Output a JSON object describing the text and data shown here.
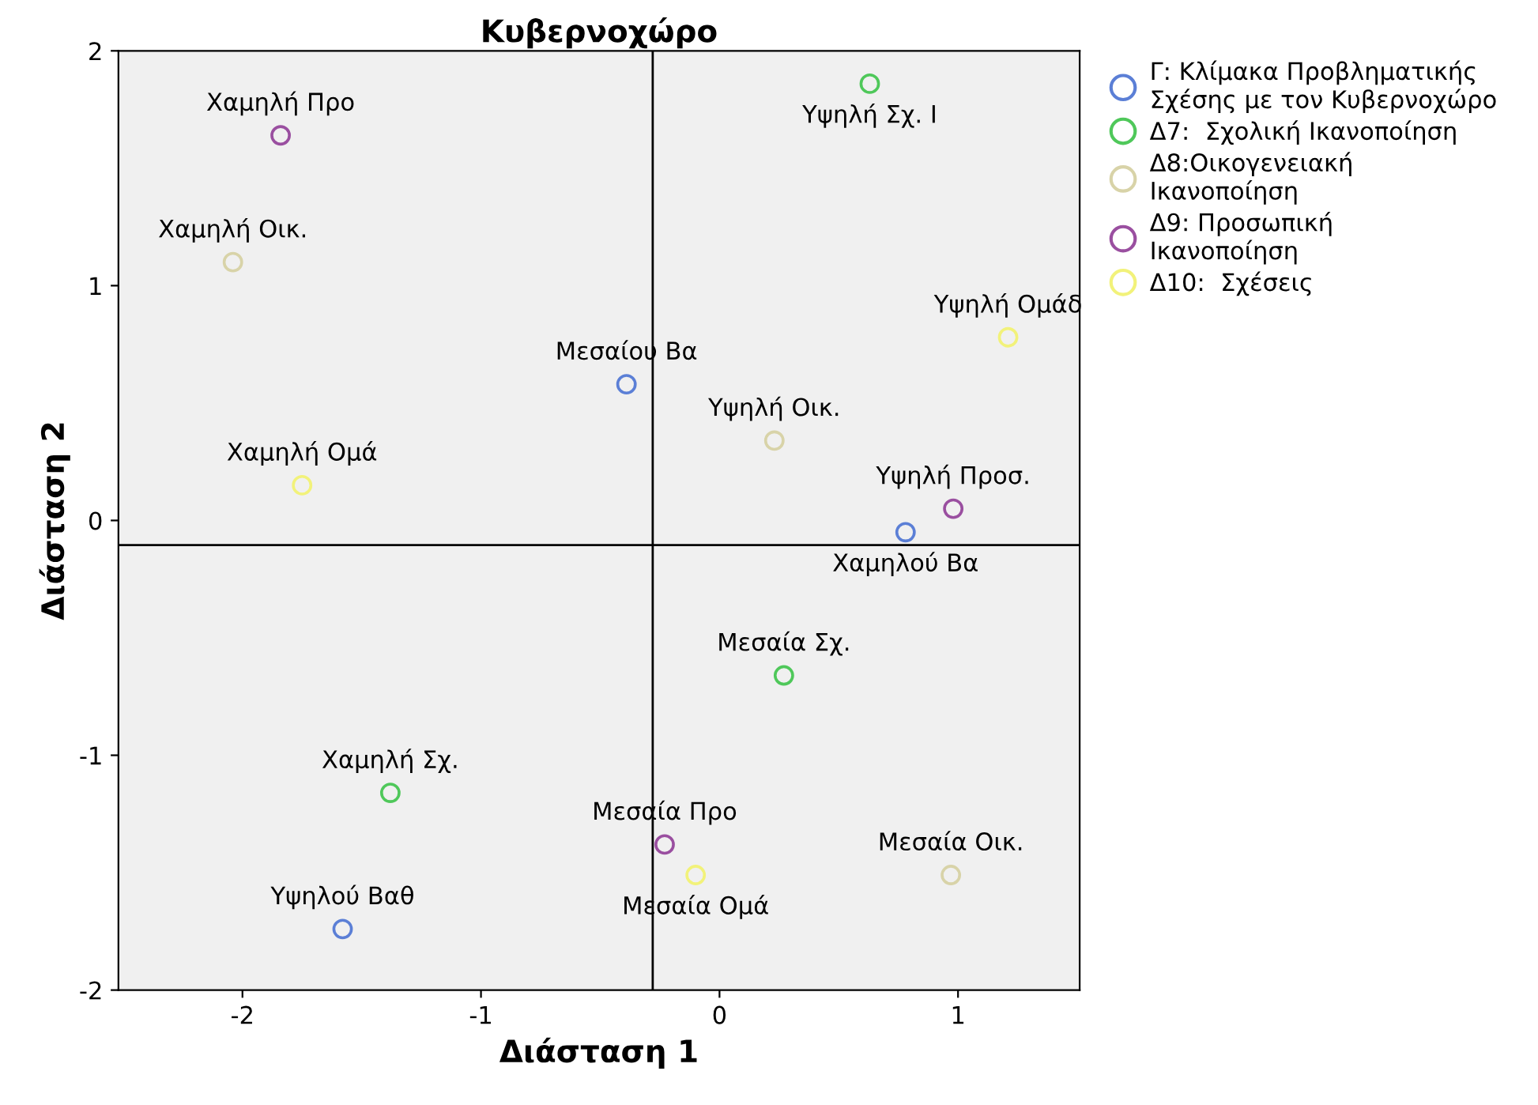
{
  "chart_data": {
    "type": "scatter",
    "title": "Κυβερνοχώρο",
    "xlabel": "Διάσταση 1",
    "ylabel": "Διάσταση 2",
    "xlim": [
      -2.52,
      1.51
    ],
    "ylim": [
      -2,
      2
    ],
    "xticks": [
      -2,
      -1,
      0,
      1
    ],
    "yticks": [
      -2,
      -1,
      0,
      1,
      2
    ],
    "grid": false,
    "legend": "top right",
    "marker": "circle",
    "series": [
      {
        "name": "Γ: Κλίμακα Προβληματικής\nΣχέσης με τον Κυβερνοχώρο",
        "color": "#5b7fd6",
        "x": [
          -0.39,
          0.78,
          -1.58
        ],
        "values": [
          0.58,
          -0.05,
          -1.74
        ]
      },
      {
        "name": "Δ7:  Σχολική Ικανοποίηση",
        "color": "#4fc85a",
        "x": [
          0.63,
          0.27,
          -1.38
        ],
        "values": [
          1.86,
          -0.66,
          -1.16
        ]
      },
      {
        "name": "Δ8:Οικογενειακή\nΙκανοποίηση",
        "color": "#d8d3a8",
        "x": [
          -2.04,
          0.23,
          0.97
        ],
        "values": [
          1.1,
          0.34,
          -1.51
        ]
      },
      {
        "name": "Δ9: Προσωπική\nΙκανοποίηση",
        "color": "#9a4fa0",
        "x": [
          -1.84,
          0.98,
          -0.23
        ],
        "values": [
          1.64,
          0.05,
          -1.38
        ]
      },
      {
        "name": "Δ10:  Σχέσεις",
        "color": "#f2f27a",
        "x": [
          1.21,
          -1.75,
          -0.1
        ],
        "values": [
          0.78,
          0.15,
          -1.51
        ]
      }
    ],
    "annotations": [
      {
        "text": "Μεσαίου Βα",
        "x": -0.39,
        "y": 0.58
      },
      {
        "text": "Χαμηλού Βα",
        "x": 0.78,
        "y": -0.05
      },
      {
        "text": "Υψηλού Βαθ",
        "x": -1.58,
        "y": -1.74
      },
      {
        "text": "Υψηλή Σχ. Ι",
        "x": 0.63,
        "y": 1.86
      },
      {
        "text": "Μεσαία Σχ.",
        "x": 0.27,
        "y": -0.66
      },
      {
        "text": "Χαμηλή Σχ.",
        "x": -1.38,
        "y": -1.16
      },
      {
        "text": "Χαμηλή Οικ.",
        "x": -2.04,
        "y": 1.1
      },
      {
        "text": "Υψηλή Οικ.",
        "x": 0.23,
        "y": 0.34
      },
      {
        "text": "Μεσαία Οικ.",
        "x": 0.97,
        "y": -1.51
      },
      {
        "text": "Χαμηλή Προ",
        "x": -1.84,
        "y": 1.64
      },
      {
        "text": "Υψηλή Προσ.",
        "x": 0.98,
        "y": 0.05
      },
      {
        "text": "Μεσαία Προ",
        "x": -0.23,
        "y": -1.38
      },
      {
        "text": "Υψηλή Ομάδ",
        "x": 1.21,
        "y": 0.78
      },
      {
        "text": "Χαμηλή Ομά",
        "x": -1.75,
        "y": 0.15
      },
      {
        "text": "Μεσαία Ομά",
        "x": -0.1,
        "y": -1.51
      }
    ],
    "ref_lines": [
      {
        "axis": "x",
        "value": -0.28,
        "color": "#000000"
      },
      {
        "axis": "y",
        "value": -0.105,
        "color": "#000000"
      }
    ]
  }
}
